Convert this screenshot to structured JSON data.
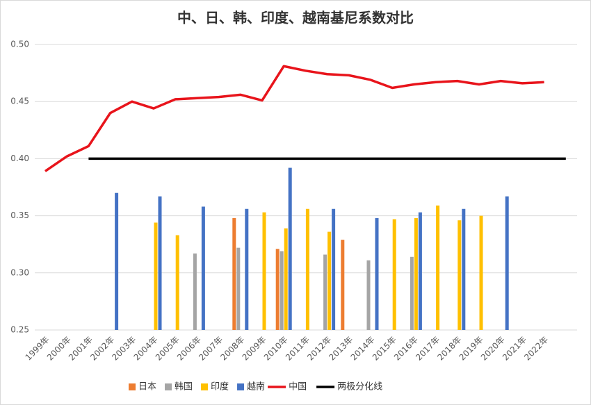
{
  "chart_data": {
    "type": "bar",
    "title": "中、日、韩、印度、越南基尼系数对比",
    "categories": [
      "1999年",
      "2000年",
      "2001年",
      "2002年",
      "2003年",
      "2004年",
      "2005年",
      "2006年",
      "2007年",
      "2008年",
      "2009年",
      "2010年",
      "2011年",
      "2012年",
      "2013年",
      "2014年",
      "2015年",
      "2016年",
      "2017年",
      "2018年",
      "2019年",
      "2020年",
      "2021年",
      "2022年",
      null
    ],
    "ylim": [
      0.25,
      0.5
    ],
    "yticks": [
      0.25,
      {
        "value": 0.3,
        "label": "0.30"
      },
      0.35,
      {
        "value": 0.4,
        "label": "0.40"
      },
      0.45,
      {
        "value": 0.5,
        "label": "0.50"
      }
    ],
    "grid": true,
    "series": [
      {
        "name": "日本",
        "type": "bar",
        "color": "#ed7d31",
        "values": [
          null,
          null,
          null,
          null,
          null,
          null,
          null,
          null,
          null,
          0.348,
          null,
          0.321,
          null,
          null,
          0.329,
          null,
          null,
          null,
          null,
          null,
          null,
          null,
          null,
          null,
          null
        ]
      },
      {
        "name": "韩国",
        "type": "bar",
        "color": "#a5a5a5",
        "values": [
          null,
          null,
          null,
          null,
          null,
          null,
          null,
          0.317,
          null,
          0.322,
          null,
          0.319,
          null,
          0.316,
          null,
          0.311,
          null,
          0.314,
          null,
          null,
          null,
          null,
          null,
          null,
          null
        ]
      },
      {
        "name": "印度",
        "type": "bar",
        "color": "#ffc000",
        "values": [
          null,
          null,
          null,
          null,
          null,
          0.344,
          0.333,
          null,
          null,
          null,
          0.353,
          0.339,
          0.356,
          0.336,
          null,
          null,
          0.347,
          0.348,
          0.359,
          0.346,
          0.35,
          null,
          null,
          null,
          null
        ]
      },
      {
        "name": "越南",
        "type": "bar",
        "color": "#4472c4",
        "values": [
          null,
          null,
          null,
          0.37,
          null,
          0.367,
          null,
          0.358,
          null,
          0.356,
          null,
          0.392,
          null,
          0.356,
          null,
          0.348,
          null,
          0.353,
          null,
          0.356,
          null,
          0.367,
          null,
          null,
          null
        ]
      },
      {
        "name": "中国",
        "type": "line",
        "color": "#e8141b",
        "values": [
          0.389,
          0.402,
          0.411,
          0.44,
          0.45,
          0.444,
          0.452,
          0.453,
          0.454,
          0.456,
          0.451,
          0.481,
          0.477,
          0.474,
          0.473,
          0.469,
          0.462,
          0.465,
          0.467,
          0.468,
          0.465,
          0.468,
          0.466,
          0.467,
          null
        ]
      },
      {
        "name": "两极分化线",
        "type": "line",
        "color": "#000000",
        "values": [
          null,
          null,
          0.4,
          0.4,
          0.4,
          0.4,
          0.4,
          0.4,
          0.4,
          0.4,
          0.4,
          0.4,
          0.4,
          0.4,
          0.4,
          0.4,
          0.4,
          0.4,
          0.4,
          0.4,
          0.4,
          0.4,
          0.4,
          0.4,
          0.4
        ]
      }
    ]
  }
}
